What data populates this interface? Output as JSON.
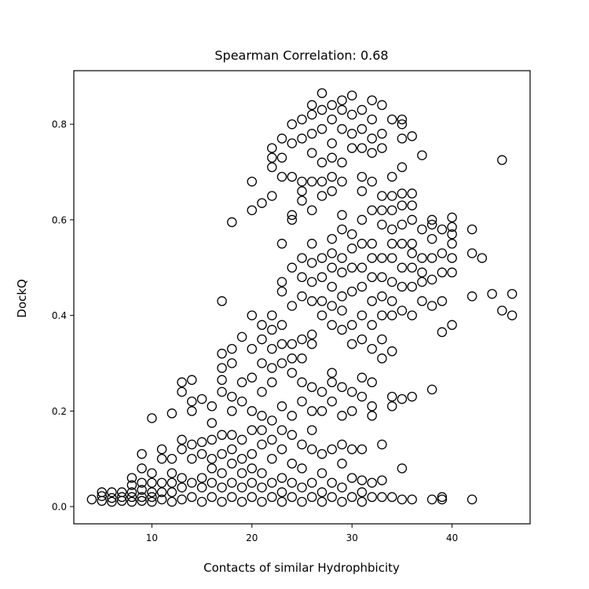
{
  "chart_data": {
    "type": "scatter",
    "title": "Spearman Correlation: 0.68",
    "xlabel": "Contacts of similar Hydrophbicity",
    "ylabel": "DockQ",
    "xlim": [
      2.2,
      47.8
    ],
    "ylim": [
      -0.036,
      0.912
    ],
    "xticks": [
      10,
      20,
      30,
      40
    ],
    "yticks": [
      0.0,
      0.2,
      0.4,
      0.6,
      0.8
    ],
    "ytick_labels": [
      "0.0",
      "0.2",
      "0.4",
      "0.6",
      "0.8"
    ],
    "marker": "open-circle",
    "marker_color": "#000000",
    "grid": false,
    "points": [
      [
        4,
        0.015
      ],
      [
        5,
        0.012
      ],
      [
        5,
        0.022
      ],
      [
        5,
        0.03
      ],
      [
        6,
        0.01
      ],
      [
        6,
        0.018
      ],
      [
        6,
        0.03
      ],
      [
        7,
        0.012
      ],
      [
        7,
        0.02
      ],
      [
        7,
        0.03
      ],
      [
        8,
        0.01
      ],
      [
        8,
        0.02
      ],
      [
        8,
        0.03
      ],
      [
        8,
        0.045
      ],
      [
        8,
        0.06
      ],
      [
        9,
        0.012
      ],
      [
        9,
        0.02
      ],
      [
        9,
        0.035
      ],
      [
        9,
        0.05
      ],
      [
        9,
        0.08
      ],
      [
        9,
        0.11
      ],
      [
        10,
        0.01
      ],
      [
        10,
        0.02
      ],
      [
        10,
        0.03
      ],
      [
        10,
        0.05
      ],
      [
        10,
        0.07
      ],
      [
        10,
        0.185
      ],
      [
        11,
        0.015
      ],
      [
        11,
        0.03
      ],
      [
        11,
        0.05
      ],
      [
        11,
        0.1
      ],
      [
        11,
        0.12
      ],
      [
        12,
        0.01
      ],
      [
        12,
        0.03
      ],
      [
        12,
        0.05
      ],
      [
        12,
        0.07
      ],
      [
        12,
        0.1
      ],
      [
        12,
        0.195
      ],
      [
        13,
        0.015
      ],
      [
        13,
        0.04
      ],
      [
        13,
        0.06
      ],
      [
        13,
        0.12
      ],
      [
        13,
        0.14
      ],
      [
        13,
        0.24
      ],
      [
        13,
        0.26
      ],
      [
        14,
        0.02
      ],
      [
        14,
        0.05
      ],
      [
        14,
        0.1
      ],
      [
        14,
        0.13
      ],
      [
        14,
        0.2
      ],
      [
        14,
        0.22
      ],
      [
        14,
        0.265
      ],
      [
        15,
        0.01
      ],
      [
        15,
        0.04
      ],
      [
        15,
        0.06
      ],
      [
        15,
        0.11
      ],
      [
        15,
        0.135
      ],
      [
        15,
        0.225
      ],
      [
        16,
        0.02
      ],
      [
        16,
        0.05
      ],
      [
        16,
        0.08
      ],
      [
        16,
        0.1
      ],
      [
        16,
        0.14
      ],
      [
        16,
        0.175
      ],
      [
        16,
        0.21
      ],
      [
        17,
        0.01
      ],
      [
        17,
        0.04
      ],
      [
        17,
        0.07
      ],
      [
        17,
        0.11
      ],
      [
        17,
        0.15
      ],
      [
        17,
        0.24
      ],
      [
        17,
        0.265
      ],
      [
        17,
        0.29
      ],
      [
        17,
        0.32
      ],
      [
        17,
        0.43
      ],
      [
        18,
        0.02
      ],
      [
        18,
        0.05
      ],
      [
        18,
        0.09
      ],
      [
        18,
        0.12
      ],
      [
        18,
        0.15
      ],
      [
        18,
        0.2
      ],
      [
        18,
        0.23
      ],
      [
        18,
        0.3
      ],
      [
        18,
        0.33
      ],
      [
        18,
        0.595
      ],
      [
        19,
        0.01
      ],
      [
        19,
        0.04
      ],
      [
        19,
        0.07
      ],
      [
        19,
        0.1
      ],
      [
        19,
        0.14
      ],
      [
        19,
        0.22
      ],
      [
        19,
        0.26
      ],
      [
        19,
        0.355
      ],
      [
        20,
        0.02
      ],
      [
        20,
        0.05
      ],
      [
        20,
        0.08
      ],
      [
        20,
        0.11
      ],
      [
        20,
        0.16
      ],
      [
        20,
        0.2
      ],
      [
        20,
        0.27
      ],
      [
        20,
        0.33
      ],
      [
        20,
        0.4
      ],
      [
        20,
        0.62
      ],
      [
        20,
        0.68
      ],
      [
        21,
        0.01
      ],
      [
        21,
        0.04
      ],
      [
        21,
        0.07
      ],
      [
        21,
        0.13
      ],
      [
        21,
        0.16
      ],
      [
        21,
        0.19
      ],
      [
        21,
        0.24
      ],
      [
        21,
        0.3
      ],
      [
        21,
        0.35
      ],
      [
        21,
        0.38
      ],
      [
        21,
        0.635
      ],
      [
        22,
        0.02
      ],
      [
        22,
        0.05
      ],
      [
        22,
        0.1
      ],
      [
        22,
        0.14
      ],
      [
        22,
        0.18
      ],
      [
        22,
        0.26
      ],
      [
        22,
        0.29
      ],
      [
        22,
        0.33
      ],
      [
        22,
        0.37
      ],
      [
        22,
        0.4
      ],
      [
        22,
        0.65
      ],
      [
        22,
        0.71
      ],
      [
        22,
        0.73
      ],
      [
        22,
        0.75
      ],
      [
        23,
        0.01
      ],
      [
        23,
        0.03
      ],
      [
        23,
        0.06
      ],
      [
        23,
        0.12
      ],
      [
        23,
        0.16
      ],
      [
        23,
        0.21
      ],
      [
        23,
        0.3
      ],
      [
        23,
        0.34
      ],
      [
        23,
        0.38
      ],
      [
        23,
        0.45
      ],
      [
        23,
        0.47
      ],
      [
        23,
        0.55
      ],
      [
        23,
        0.69
      ],
      [
        23,
        0.73
      ],
      [
        23,
        0.77
      ],
      [
        24,
        0.02
      ],
      [
        24,
        0.05
      ],
      [
        24,
        0.09
      ],
      [
        24,
        0.15
      ],
      [
        24,
        0.19
      ],
      [
        24,
        0.28
      ],
      [
        24,
        0.31
      ],
      [
        24,
        0.34
      ],
      [
        24,
        0.42
      ],
      [
        24,
        0.5
      ],
      [
        24,
        0.6
      ],
      [
        24,
        0.61
      ],
      [
        24,
        0.69
      ],
      [
        24,
        0.76
      ],
      [
        24,
        0.8
      ],
      [
        25,
        0.01
      ],
      [
        25,
        0.04
      ],
      [
        25,
        0.08
      ],
      [
        25,
        0.13
      ],
      [
        25,
        0.22
      ],
      [
        25,
        0.26
      ],
      [
        25,
        0.31
      ],
      [
        25,
        0.35
      ],
      [
        25,
        0.44
      ],
      [
        25,
        0.48
      ],
      [
        25,
        0.52
      ],
      [
        25,
        0.64
      ],
      [
        25,
        0.66
      ],
      [
        25,
        0.68
      ],
      [
        25,
        0.77
      ],
      [
        25,
        0.81
      ],
      [
        26,
        0.02
      ],
      [
        26,
        0.05
      ],
      [
        26,
        0.12
      ],
      [
        26,
        0.16
      ],
      [
        26,
        0.2
      ],
      [
        26,
        0.25
      ],
      [
        26,
        0.34
      ],
      [
        26,
        0.36
      ],
      [
        26,
        0.43
      ],
      [
        26,
        0.47
      ],
      [
        26,
        0.51
      ],
      [
        26,
        0.55
      ],
      [
        26,
        0.62
      ],
      [
        26,
        0.68
      ],
      [
        26,
        0.74
      ],
      [
        26,
        0.78
      ],
      [
        26,
        0.82
      ],
      [
        26,
        0.84
      ],
      [
        27,
        0.01
      ],
      [
        27,
        0.03
      ],
      [
        27,
        0.07
      ],
      [
        27,
        0.11
      ],
      [
        27,
        0.2
      ],
      [
        27,
        0.24
      ],
      [
        27,
        0.4
      ],
      [
        27,
        0.43
      ],
      [
        27,
        0.48
      ],
      [
        27,
        0.52
      ],
      [
        27,
        0.65
      ],
      [
        27,
        0.68
      ],
      [
        27,
        0.72
      ],
      [
        27,
        0.79
      ],
      [
        27,
        0.83
      ],
      [
        27,
        0.865
      ],
      [
        28,
        0.02
      ],
      [
        28,
        0.05
      ],
      [
        28,
        0.12
      ],
      [
        28,
        0.22
      ],
      [
        28,
        0.26
      ],
      [
        28,
        0.28
      ],
      [
        28,
        0.38
      ],
      [
        28,
        0.42
      ],
      [
        28,
        0.46
      ],
      [
        28,
        0.5
      ],
      [
        28,
        0.53
      ],
      [
        28,
        0.56
      ],
      [
        28,
        0.66
      ],
      [
        28,
        0.69
      ],
      [
        28,
        0.73
      ],
      [
        28,
        0.76
      ],
      [
        28,
        0.81
      ],
      [
        28,
        0.84
      ],
      [
        29,
        0.01
      ],
      [
        29,
        0.04
      ],
      [
        29,
        0.09
      ],
      [
        29,
        0.13
      ],
      [
        29,
        0.19
      ],
      [
        29,
        0.25
      ],
      [
        29,
        0.37
      ],
      [
        29,
        0.41
      ],
      [
        29,
        0.44
      ],
      [
        29,
        0.49
      ],
      [
        29,
        0.52
      ],
      [
        29,
        0.58
      ],
      [
        29,
        0.61
      ],
      [
        29,
        0.68
      ],
      [
        29,
        0.72
      ],
      [
        29,
        0.79
      ],
      [
        29,
        0.83
      ],
      [
        29,
        0.85
      ],
      [
        30,
        0.02
      ],
      [
        30,
        0.06
      ],
      [
        30,
        0.12
      ],
      [
        30,
        0.2
      ],
      [
        30,
        0.24
      ],
      [
        30,
        0.34
      ],
      [
        30,
        0.38
      ],
      [
        30,
        0.45
      ],
      [
        30,
        0.5
      ],
      [
        30,
        0.54
      ],
      [
        30,
        0.57
      ],
      [
        30,
        0.75
      ],
      [
        30,
        0.78
      ],
      [
        30,
        0.82
      ],
      [
        30,
        0.86
      ],
      [
        31,
        0.01
      ],
      [
        31,
        0.03
      ],
      [
        31,
        0.055
      ],
      [
        31,
        0.12
      ],
      [
        31,
        0.23
      ],
      [
        31,
        0.27
      ],
      [
        31,
        0.35
      ],
      [
        31,
        0.4
      ],
      [
        31,
        0.46
      ],
      [
        31,
        0.5
      ],
      [
        31,
        0.55
      ],
      [
        31,
        0.6
      ],
      [
        31,
        0.66
      ],
      [
        31,
        0.69
      ],
      [
        31,
        0.75
      ],
      [
        31,
        0.79
      ],
      [
        31,
        0.83
      ],
      [
        32,
        0.02
      ],
      [
        32,
        0.05
      ],
      [
        32,
        0.19
      ],
      [
        32,
        0.21
      ],
      [
        32,
        0.26
      ],
      [
        32,
        0.33
      ],
      [
        32,
        0.38
      ],
      [
        32,
        0.43
      ],
      [
        32,
        0.48
      ],
      [
        32,
        0.52
      ],
      [
        32,
        0.55
      ],
      [
        32,
        0.62
      ],
      [
        32,
        0.68
      ],
      [
        32,
        0.74
      ],
      [
        32,
        0.77
      ],
      [
        32,
        0.81
      ],
      [
        32,
        0.85
      ],
      [
        33,
        0.02
      ],
      [
        33,
        0.055
      ],
      [
        33,
        0.13
      ],
      [
        33,
        0.31
      ],
      [
        33,
        0.35
      ],
      [
        33,
        0.4
      ],
      [
        33,
        0.44
      ],
      [
        33,
        0.48
      ],
      [
        33,
        0.52
      ],
      [
        33,
        0.59
      ],
      [
        33,
        0.62
      ],
      [
        33,
        0.65
      ],
      [
        33,
        0.75
      ],
      [
        33,
        0.78
      ],
      [
        33,
        0.84
      ],
      [
        34,
        0.02
      ],
      [
        34,
        0.21
      ],
      [
        34,
        0.23
      ],
      [
        34,
        0.325
      ],
      [
        34,
        0.4
      ],
      [
        34,
        0.43
      ],
      [
        34,
        0.47
      ],
      [
        34,
        0.52
      ],
      [
        34,
        0.55
      ],
      [
        34,
        0.58
      ],
      [
        34,
        0.62
      ],
      [
        34,
        0.65
      ],
      [
        34,
        0.69
      ],
      [
        34,
        0.81
      ],
      [
        35,
        0.015
      ],
      [
        35,
        0.08
      ],
      [
        35,
        0.225
      ],
      [
        35,
        0.41
      ],
      [
        35,
        0.46
      ],
      [
        35,
        0.5
      ],
      [
        35,
        0.55
      ],
      [
        35,
        0.59
      ],
      [
        35,
        0.63
      ],
      [
        35,
        0.655
      ],
      [
        35,
        0.71
      ],
      [
        35,
        0.77
      ],
      [
        35,
        0.8
      ],
      [
        35,
        0.81
      ],
      [
        36,
        0.015
      ],
      [
        36,
        0.23
      ],
      [
        36,
        0.4
      ],
      [
        36,
        0.46
      ],
      [
        36,
        0.5
      ],
      [
        36,
        0.53
      ],
      [
        36,
        0.55
      ],
      [
        36,
        0.6
      ],
      [
        36,
        0.63
      ],
      [
        36,
        0.655
      ],
      [
        36,
        0.775
      ],
      [
        37,
        0.43
      ],
      [
        37,
        0.47
      ],
      [
        37,
        0.49
      ],
      [
        37,
        0.52
      ],
      [
        37,
        0.58
      ],
      [
        37,
        0.735
      ],
      [
        38,
        0.015
      ],
      [
        38,
        0.245
      ],
      [
        38,
        0.42
      ],
      [
        38,
        0.475
      ],
      [
        38,
        0.52
      ],
      [
        38,
        0.56
      ],
      [
        38,
        0.59
      ],
      [
        38,
        0.6
      ],
      [
        39,
        0.015
      ],
      [
        39,
        0.02
      ],
      [
        39,
        0.365
      ],
      [
        39,
        0.43
      ],
      [
        39,
        0.49
      ],
      [
        39,
        0.53
      ],
      [
        39,
        0.58
      ],
      [
        40,
        0.38
      ],
      [
        40,
        0.49
      ],
      [
        40,
        0.52
      ],
      [
        40,
        0.55
      ],
      [
        40,
        0.57
      ],
      [
        40,
        0.585
      ],
      [
        40,
        0.605
      ],
      [
        42,
        0.015
      ],
      [
        42,
        0.44
      ],
      [
        42,
        0.53
      ],
      [
        42,
        0.58
      ],
      [
        43,
        0.52
      ],
      [
        44,
        0.445
      ],
      [
        45,
        0.41
      ],
      [
        45,
        0.725
      ],
      [
        46,
        0.4
      ],
      [
        46,
        0.445
      ]
    ]
  }
}
